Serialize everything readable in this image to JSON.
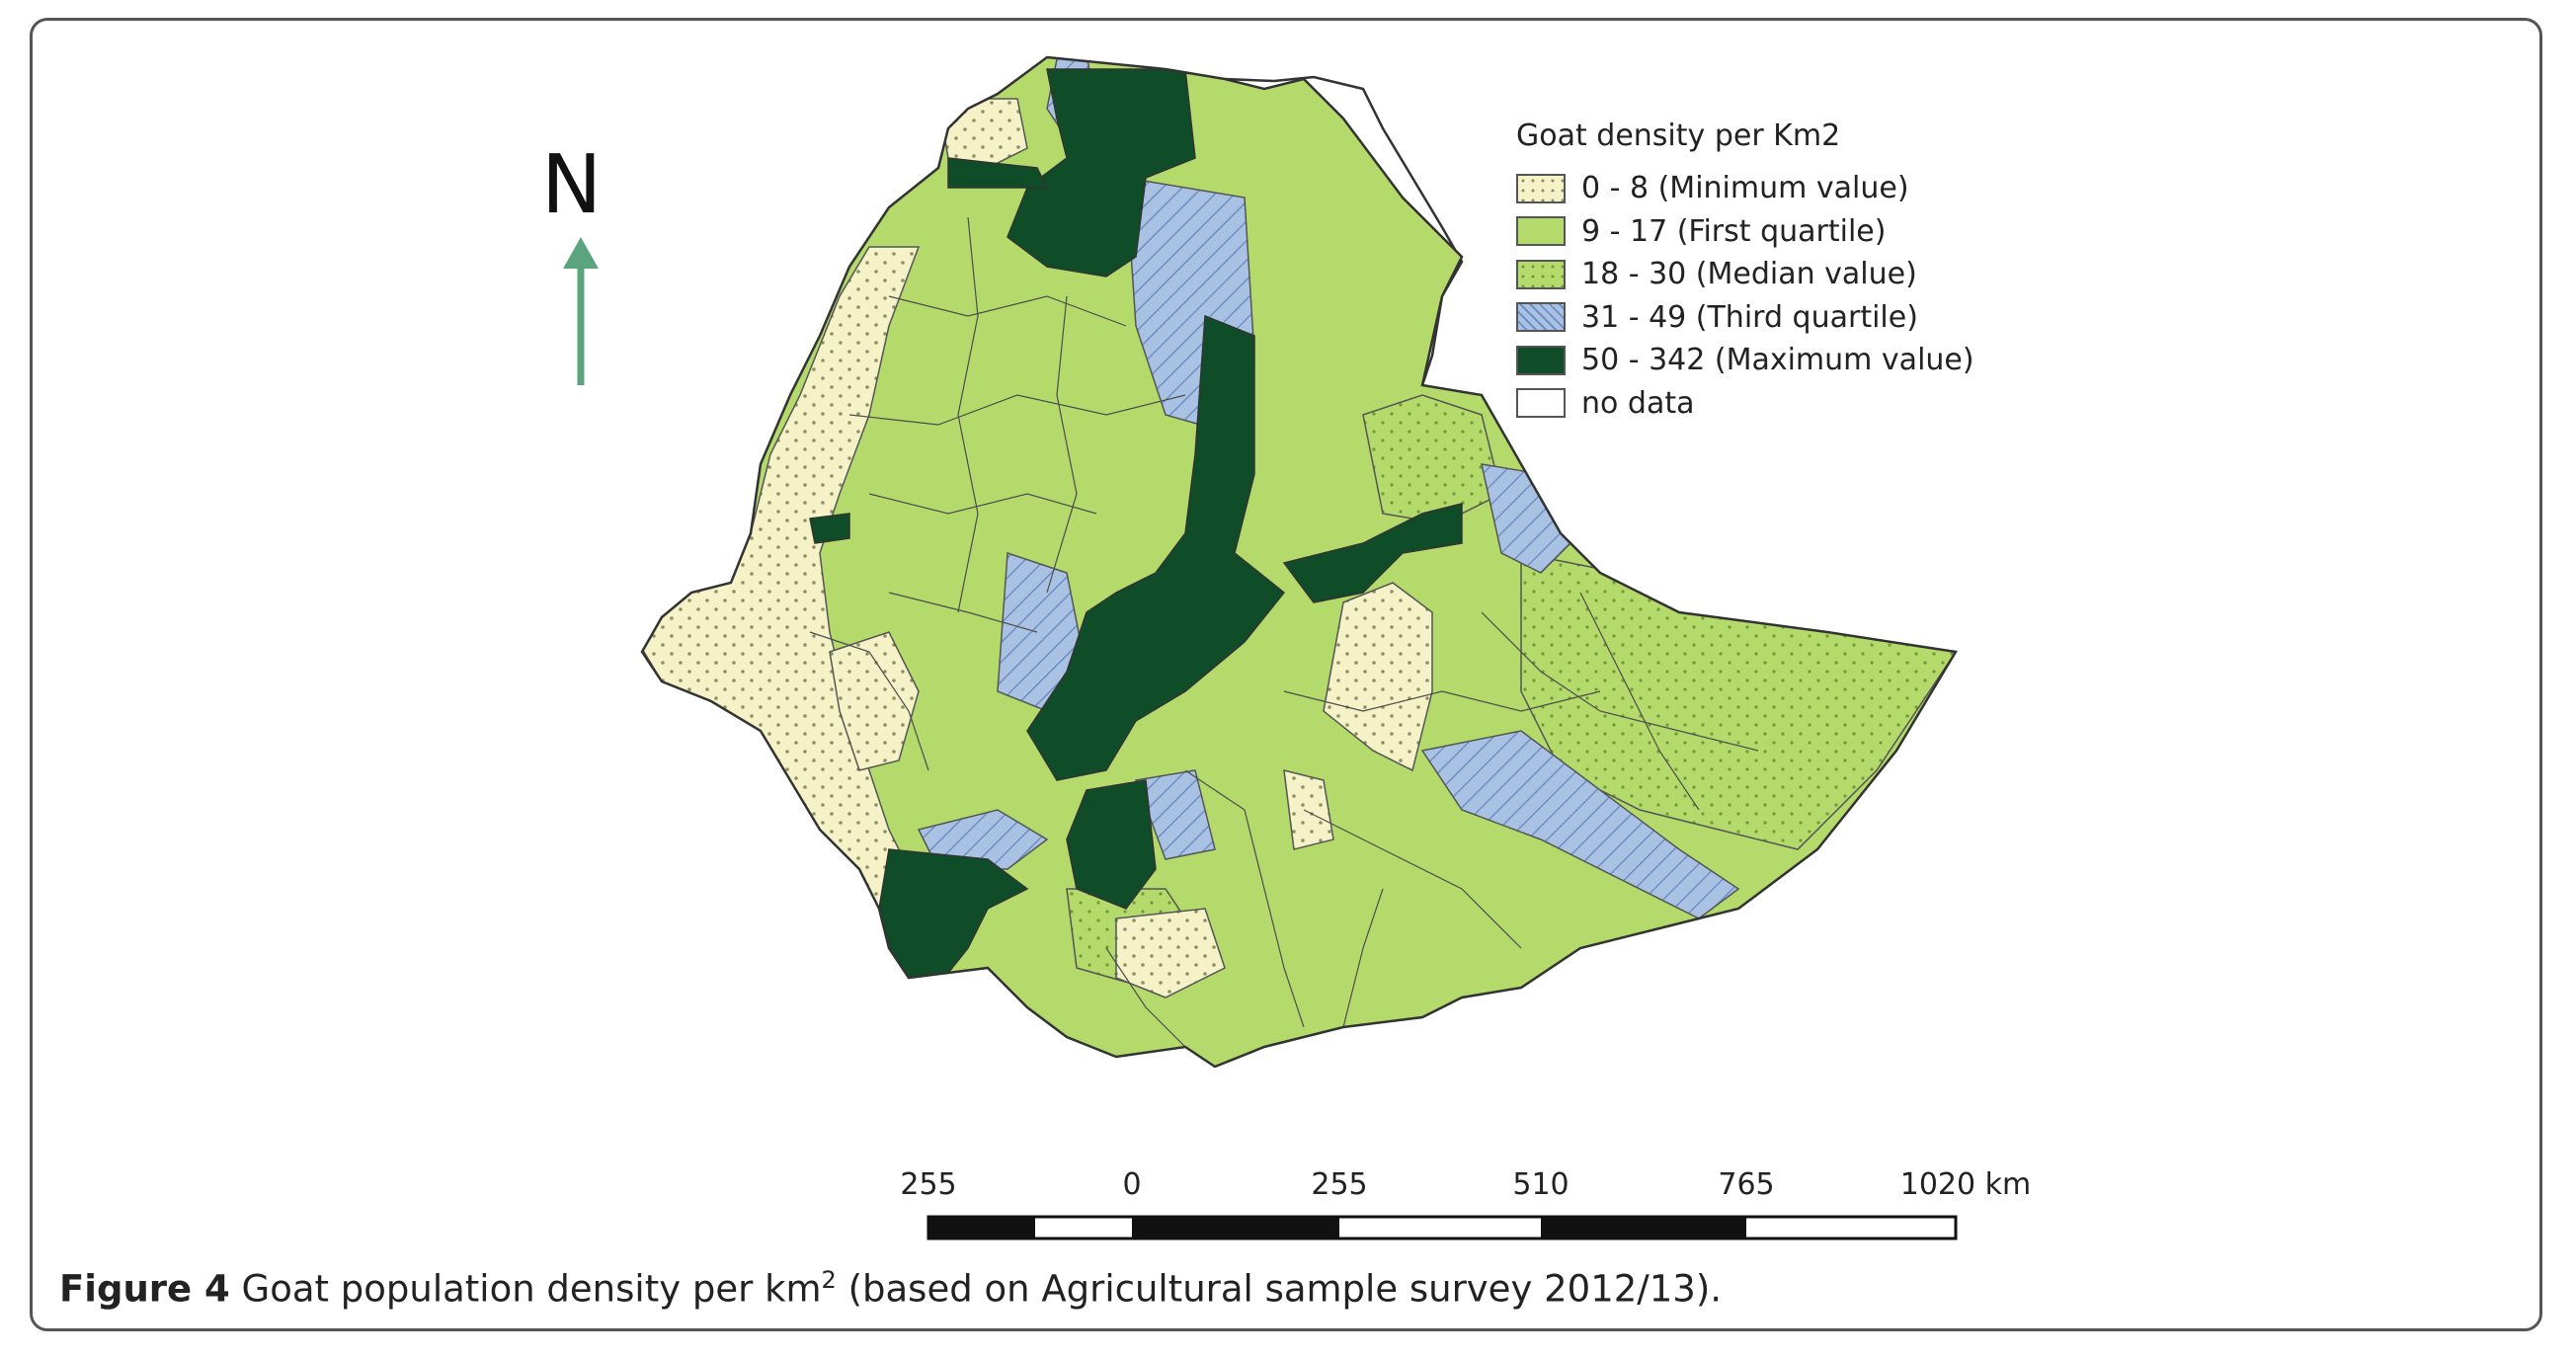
{
  "map": {
    "north_label": "N",
    "arrow_color": "#5aa57f",
    "legend": {
      "title": "Goat density per Km2",
      "classes": [
        {
          "label": "0 - 8 (Minimum value)",
          "color": "#f5f2c8",
          "pattern": "dots"
        },
        {
          "label": "9 - 17 (First quartile)",
          "color": "#b3da6a",
          "pattern": "none"
        },
        {
          "label": "18 - 30 (Median value)",
          "color": "#b3da6a",
          "pattern": "dots"
        },
        {
          "label": "31 - 49 (Third quartile)",
          "color": "#a9c2e3",
          "pattern": "hatch"
        },
        {
          "label": "50 - 342 (Maximum value)",
          "color": "#0e4d27",
          "pattern": "none"
        },
        {
          "label": "no data",
          "color": "#ffffff",
          "pattern": "none"
        }
      ]
    },
    "scale_bar": {
      "labels": [
        "255",
        "0",
        "255",
        "510",
        "765",
        "1020 km"
      ]
    }
  },
  "caption": {
    "figure_label": "Figure 4",
    "text_before_sup": "Goat population density per km",
    "superscript": "2",
    "text_after_sup": " (based on Agricultural sample survey 2012/13)."
  }
}
